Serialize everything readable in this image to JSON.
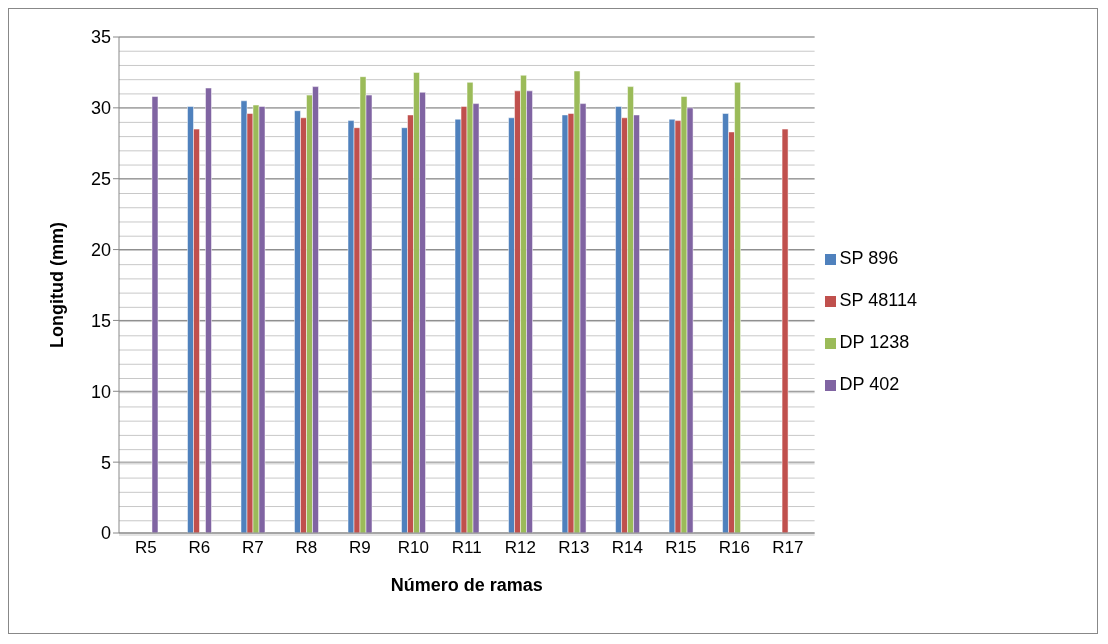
{
  "chart_data": {
    "type": "bar",
    "xlabel": "Número de ramas",
    "ylabel": "Longitud (mm)",
    "categories": [
      "R5",
      "R6",
      "R7",
      "R8",
      "R9",
      "R10",
      "R11",
      "R12",
      "R13",
      "R14",
      "R15",
      "R16",
      "R17"
    ],
    "series": [
      {
        "name": "SP 896",
        "color": "#4f81bd",
        "values": [
          null,
          30.1,
          30.5,
          29.8,
          29.1,
          28.6,
          29.2,
          29.3,
          29.5,
          30.1,
          29.2,
          29.6,
          null
        ]
      },
      {
        "name": "SP 48114",
        "color": "#c0504d",
        "values": [
          null,
          28.5,
          29.6,
          29.3,
          28.6,
          29.5,
          30.1,
          31.2,
          29.6,
          29.3,
          29.1,
          28.3,
          28.5
        ]
      },
      {
        "name": "DP 1238",
        "color": "#9bbb59",
        "values": [
          null,
          null,
          30.2,
          30.9,
          32.2,
          32.5,
          31.8,
          32.3,
          32.6,
          31.5,
          30.8,
          31.8,
          null
        ]
      },
      {
        "name": "DP 402",
        "color": "#8064a2",
        "values": [
          30.8,
          31.4,
          30.1,
          31.5,
          30.9,
          31.1,
          30.3,
          31.2,
          30.3,
          29.5,
          30.0,
          null,
          null
        ]
      }
    ],
    "ylim": [
      0,
      35
    ],
    "yticks": [
      0,
      5,
      10,
      15,
      20,
      25,
      30,
      35
    ],
    "grid": "y",
    "legend": "right"
  }
}
